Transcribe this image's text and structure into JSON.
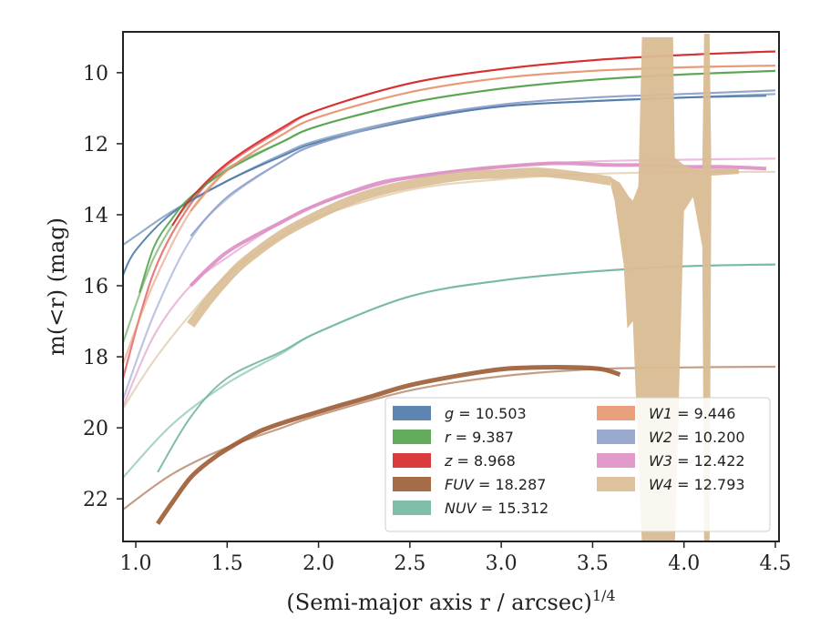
{
  "chart_data": {
    "type": "line",
    "xlabel": "(Semi-major axis r / arcsec)",
    "xlabel_sup": "1/4",
    "ylabel": "m(<r) (mag)",
    "xlim": [
      0.93,
      4.52
    ],
    "ylim": [
      23.2,
      8.85
    ],
    "y_inverted": true,
    "xticks": [
      1.0,
      1.5,
      2.0,
      2.5,
      3.0,
      3.5,
      4.0,
      4.5
    ],
    "xtick_labels": [
      "1.0",
      "1.5",
      "2.0",
      "2.5",
      "3.0",
      "3.5",
      "4.0",
      "4.5"
    ],
    "yticks": [
      10,
      12,
      14,
      16,
      18,
      20,
      22
    ],
    "ytick_labels": [
      "10",
      "12",
      "14",
      "16",
      "18",
      "20",
      "22"
    ],
    "grid": false,
    "legend_position": "lower-right",
    "series": [
      {
        "name": "g",
        "legend": "g = 10.503",
        "color": "#4c78a8",
        "model": {
          "x": [
            0.93,
            1.0,
            1.2,
            1.5,
            1.8,
            2.0,
            2.5,
            3.0,
            3.5,
            4.0,
            4.5
          ],
          "y": [
            14.85,
            14.6,
            13.9,
            13.05,
            12.3,
            11.9,
            11.3,
            10.95,
            10.8,
            10.7,
            10.6
          ]
        },
        "data": {
          "x": [
            0.93,
            1.0,
            1.2,
            1.5,
            1.8,
            2.0,
            2.5,
            3.0,
            3.5,
            4.0,
            4.45
          ],
          "y": [
            15.7,
            15.0,
            13.95,
            13.05,
            12.35,
            11.95,
            11.35,
            10.95,
            10.8,
            10.7,
            10.65
          ],
          "width": 2
        }
      },
      {
        "name": "r",
        "legend": "r = 9.387",
        "color": "#54a24b",
        "model": {
          "x": [
            0.93,
            1.1,
            1.3,
            1.5,
            1.8,
            2.0,
            2.5,
            3.0,
            3.5,
            4.0,
            4.5
          ],
          "y": [
            17.6,
            15.2,
            13.6,
            12.7,
            11.95,
            11.5,
            10.85,
            10.45,
            10.2,
            10.05,
            9.95
          ]
        },
        "data": {
          "x": [
            1.02,
            1.1,
            1.2,
            1.3,
            1.5,
            1.8,
            2.0,
            2.5,
            3.0,
            3.5,
            4.0,
            4.5
          ],
          "y": [
            16.2,
            14.9,
            14.1,
            13.5,
            12.75,
            11.95,
            11.5,
            10.85,
            10.45,
            10.2,
            10.05,
            9.95
          ],
          "width": 2
        }
      },
      {
        "name": "z",
        "legend": "z = 8.968",
        "color": "#d62728",
        "model": {
          "x": [
            0.93,
            1.1,
            1.3,
            1.5,
            1.8,
            2.0,
            2.5,
            3.0,
            3.5,
            4.0,
            4.5
          ],
          "y": [
            18.6,
            15.6,
            13.7,
            12.6,
            11.6,
            11.05,
            10.3,
            9.9,
            9.65,
            9.5,
            9.4
          ]
        },
        "data": {
          "x": [
            1.2,
            1.3,
            1.5,
            1.8,
            2.0,
            2.5,
            3.0,
            3.5,
            4.0,
            4.5
          ],
          "y": [
            14.3,
            13.55,
            12.55,
            11.55,
            11.05,
            10.3,
            9.9,
            9.65,
            9.5,
            9.4
          ],
          "width": 2
        }
      },
      {
        "name": "FUV",
        "legend": "FUV = 18.287",
        "color": "#9c5b33",
        "model": {
          "x": [
            0.93,
            1.2,
            1.5,
            1.8,
            2.0,
            2.5,
            3.0,
            3.5,
            4.0,
            4.5
          ],
          "y": [
            22.3,
            21.3,
            20.55,
            20.0,
            19.65,
            18.95,
            18.55,
            18.35,
            18.3,
            18.28
          ]
        },
        "data": {
          "x": [
            1.12,
            1.2,
            1.3,
            1.4,
            1.5,
            1.7,
            2.0,
            2.3,
            2.5,
            2.8,
            3.0,
            3.2,
            3.4,
            3.55,
            3.65
          ],
          "y": [
            22.7,
            22.1,
            21.4,
            20.95,
            20.6,
            20.05,
            19.55,
            19.1,
            18.8,
            18.5,
            18.35,
            18.3,
            18.3,
            18.35,
            18.5
          ],
          "width": 5
        }
      },
      {
        "name": "NUV",
        "legend": "NUV = 15.312",
        "color": "#72b7a1",
        "model": {
          "x": [
            0.93,
            1.2,
            1.5,
            1.8,
            2.0,
            2.5,
            3.0,
            3.5,
            4.0,
            4.5
          ],
          "y": [
            21.4,
            19.9,
            18.75,
            17.9,
            17.3,
            16.3,
            15.85,
            15.6,
            15.45,
            15.4
          ]
        },
        "data": {
          "x": [
            1.12,
            1.3,
            1.5,
            1.8,
            2.0,
            2.5,
            3.0,
            3.5,
            4.0,
            4.5
          ],
          "y": [
            21.25,
            19.7,
            18.6,
            17.85,
            17.3,
            16.3,
            15.85,
            15.6,
            15.45,
            15.4
          ],
          "width": 2
        }
      },
      {
        "name": "W1",
        "legend": "W1 = 9.446",
        "color": "#e8956f",
        "model": {
          "x": [
            0.93,
            1.1,
            1.3,
            1.5,
            1.8,
            2.0,
            2.5,
            3.0,
            3.5,
            4.0,
            4.5
          ],
          "y": [
            18.2,
            15.9,
            13.9,
            12.75,
            11.75,
            11.25,
            10.55,
            10.15,
            9.95,
            9.85,
            9.8
          ]
        },
        "data": {
          "x": [
            1.3,
            1.5,
            1.8,
            2.0,
            2.5,
            3.0,
            3.5,
            4.0,
            4.5
          ],
          "y": [
            13.9,
            12.75,
            11.75,
            11.25,
            10.55,
            10.15,
            9.95,
            9.85,
            9.8
          ],
          "width": 2
        }
      },
      {
        "name": "W2",
        "legend": "W2 = 10.200",
        "color": "#8fa0c9",
        "model": {
          "x": [
            0.93,
            1.1,
            1.3,
            1.5,
            1.8,
            2.0,
            2.5,
            3.0,
            3.5,
            4.0,
            4.5
          ],
          "y": [
            19.2,
            16.8,
            14.7,
            13.55,
            12.5,
            12.0,
            11.3,
            10.9,
            10.7,
            10.6,
            10.5
          ]
        },
        "data": {
          "x": [
            1.3,
            1.5,
            1.8,
            2.0,
            2.5,
            3.0,
            3.5,
            4.0,
            4.5
          ],
          "y": [
            14.6,
            13.5,
            12.5,
            12.0,
            11.3,
            10.9,
            10.7,
            10.6,
            10.5
          ],
          "width": 2
        }
      },
      {
        "name": "W3",
        "legend": "W3 = 12.422",
        "color": "#dd8fc4",
        "model": {
          "x": [
            0.93,
            1.1,
            1.3,
            1.5,
            1.8,
            2.0,
            2.5,
            3.0,
            3.5,
            4.0,
            4.5
          ],
          "y": [
            19.4,
            17.4,
            16.0,
            15.2,
            14.2,
            13.7,
            12.95,
            12.65,
            12.5,
            12.45,
            12.42
          ]
        },
        "data": {
          "x": [
            1.3,
            1.5,
            1.8,
            2.0,
            2.3,
            2.5,
            2.8,
            3.0,
            3.3,
            3.6,
            3.8,
            4.0,
            4.2,
            4.45
          ],
          "y": [
            16.0,
            15.05,
            14.2,
            13.7,
            13.15,
            12.95,
            12.75,
            12.65,
            12.55,
            12.6,
            12.6,
            12.65,
            12.65,
            12.7
          ],
          "width": 4
        }
      },
      {
        "name": "W4",
        "legend": "W4 = 12.793",
        "color": "#d9bc94",
        "model": {
          "x": [
            0.93,
            1.1,
            1.3,
            1.5,
            1.8,
            2.0,
            2.5,
            3.0,
            3.5,
            4.0,
            4.5
          ],
          "y": [
            19.45,
            18.1,
            16.8,
            15.7,
            14.6,
            14.05,
            13.3,
            13.0,
            12.85,
            12.8,
            12.79
          ]
        },
        "data": {
          "x": [
            1.3,
            1.4,
            1.5,
            1.6,
            1.8,
            2.0,
            2.2,
            2.4,
            2.6,
            2.8,
            3.0,
            3.2,
            3.4,
            3.6
          ],
          "y": [
            17.1,
            16.4,
            15.8,
            15.3,
            14.55,
            14.0,
            13.55,
            13.25,
            13.05,
            12.9,
            12.85,
            12.8,
            12.9,
            13.05
          ],
          "width": 10
        }
      }
    ],
    "legend_entries": [
      {
        "series": "g",
        "label": "= 10.503"
      },
      {
        "series": "r",
        "label": "= 9.387"
      },
      {
        "series": "z",
        "label": "= 8.968"
      },
      {
        "series": "FUV",
        "label": "= 18.287"
      },
      {
        "series": "NUV",
        "label": "= 15.312"
      },
      {
        "series": "W1",
        "label": "= 9.446"
      },
      {
        "series": "W2",
        "label": "= 10.200"
      },
      {
        "series": "W3",
        "label": "= 12.422"
      },
      {
        "series": "W4",
        "label": "= 12.793"
      }
    ]
  }
}
